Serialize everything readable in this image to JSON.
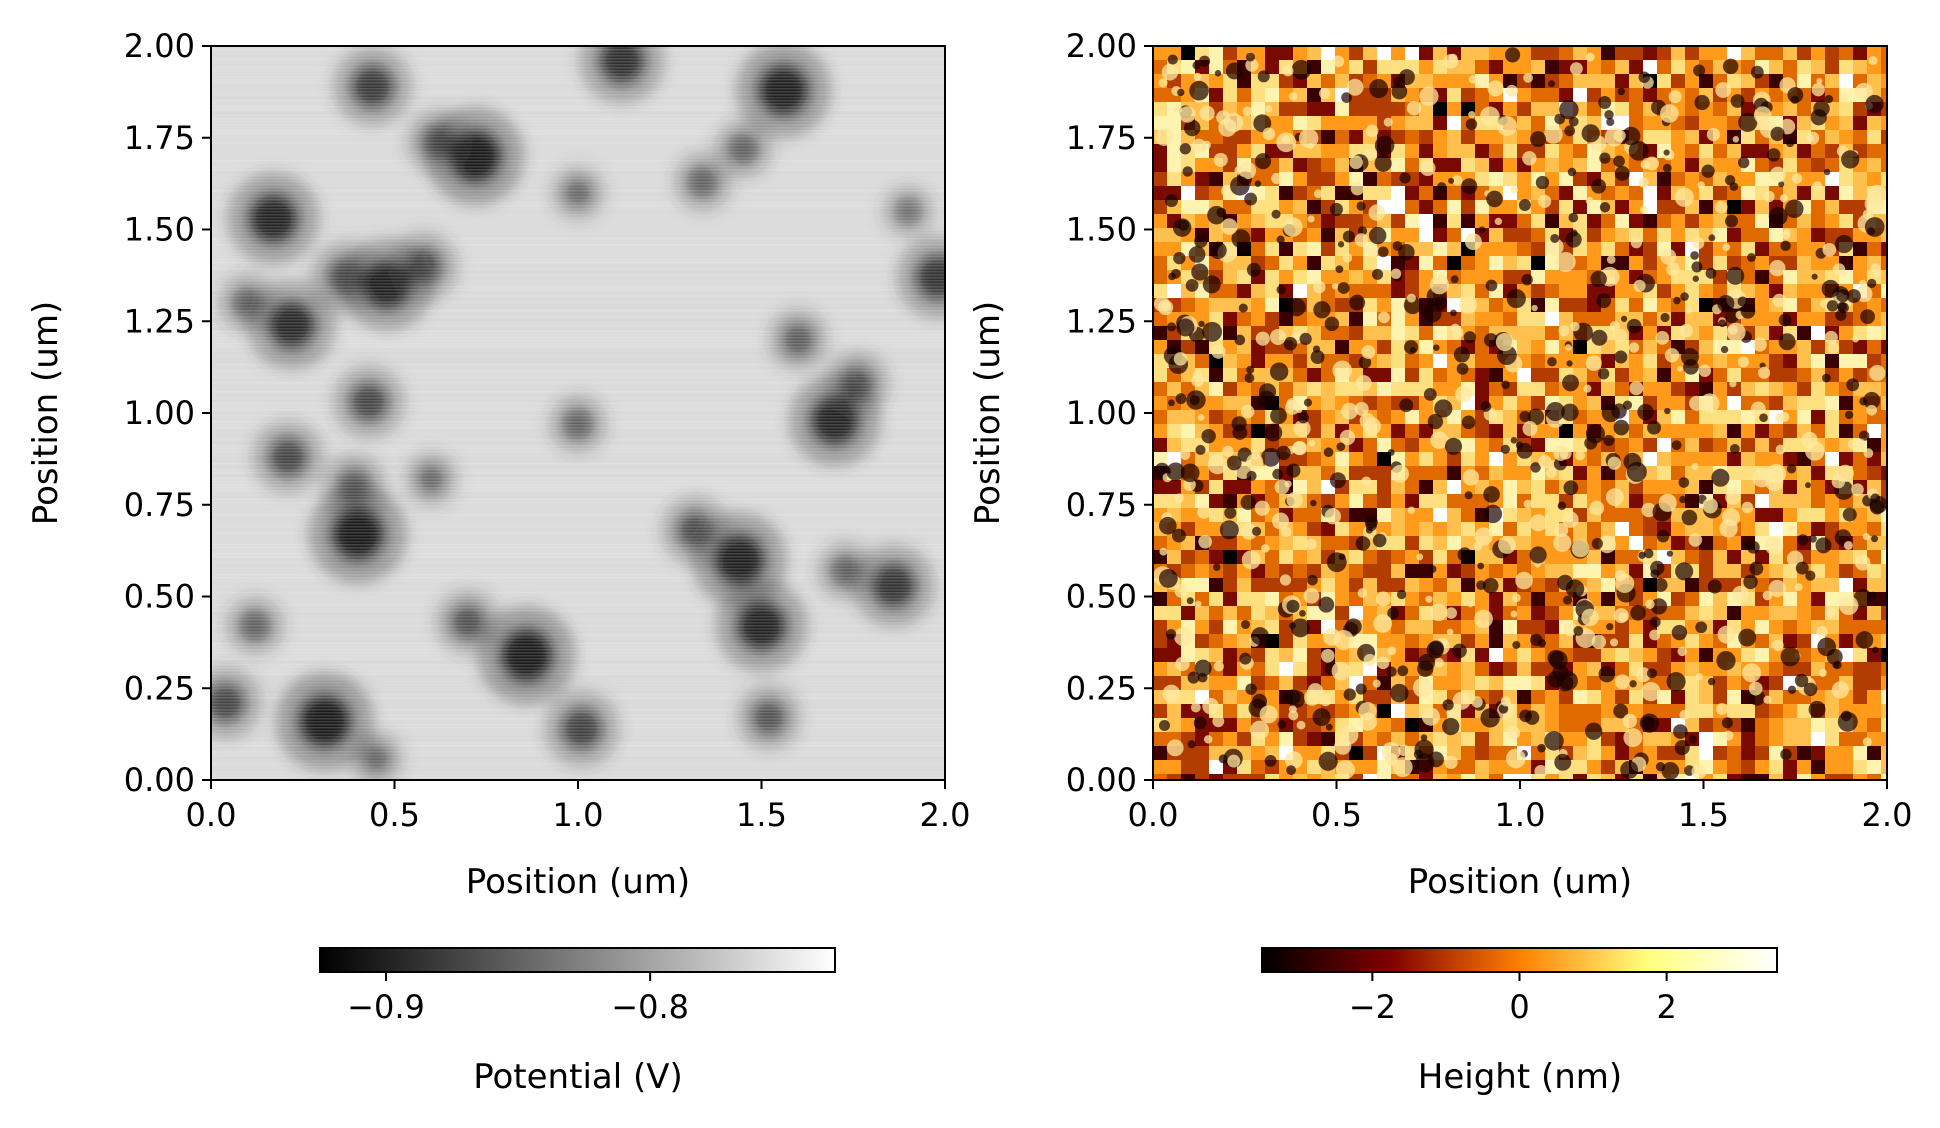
{
  "chart_data": [
    {
      "type": "heatmap",
      "title": "",
      "xlabel": "Position (um)",
      "ylabel": "Position (um)",
      "xlim": [
        0.0,
        2.0
      ],
      "ylim": [
        0.0,
        2.0
      ],
      "xticks": [
        "0.0",
        "0.5",
        "1.0",
        "1.5",
        "2.0"
      ],
      "xtick_values": [
        0.0,
        0.5,
        1.0,
        1.5,
        2.0
      ],
      "yticks": [
        "0.00",
        "0.25",
        "0.50",
        "0.75",
        "1.00",
        "1.25",
        "1.50",
        "1.75",
        "2.00"
      ],
      "ytick_values": [
        0.0,
        0.25,
        0.5,
        0.75,
        1.0,
        1.25,
        1.5,
        1.75,
        2.0
      ],
      "colormap": "gray",
      "colorbar": {
        "label": "Potential (V)",
        "range": [
          -0.925,
          -0.73
        ],
        "ticks": [
          "−0.9",
          "−0.8"
        ],
        "tick_values": [
          -0.9,
          -0.8
        ],
        "orientation": "horizontal",
        "placement": "bottom"
      },
      "features": {
        "description_values": "background near -0.76 V with dark circular spots near -0.92 V",
        "background_level": -0.765,
        "dark_spots": [
          {
            "x": 0.44,
            "y": 1.89,
            "depth": 0.7
          },
          {
            "x": 0.72,
            "y": 1.7,
            "depth": 1.0
          },
          {
            "x": 0.62,
            "y": 1.74,
            "depth": 0.5
          },
          {
            "x": 1.12,
            "y": 1.96,
            "depth": 0.8
          },
          {
            "x": 1.56,
            "y": 1.88,
            "depth": 0.95
          },
          {
            "x": 1.45,
            "y": 1.72,
            "depth": 0.4
          },
          {
            "x": 0.17,
            "y": 1.53,
            "depth": 0.9
          },
          {
            "x": 0.37,
            "y": 1.37,
            "depth": 0.6
          },
          {
            "x": 0.48,
            "y": 1.35,
            "depth": 0.9
          },
          {
            "x": 0.58,
            "y": 1.4,
            "depth": 0.55
          },
          {
            "x": 0.22,
            "y": 1.24,
            "depth": 0.85
          },
          {
            "x": 0.1,
            "y": 1.3,
            "depth": 0.4
          },
          {
            "x": 1.0,
            "y": 1.6,
            "depth": 0.35
          },
          {
            "x": 1.34,
            "y": 1.63,
            "depth": 0.4
          },
          {
            "x": 1.6,
            "y": 1.2,
            "depth": 0.45
          },
          {
            "x": 1.98,
            "y": 1.37,
            "depth": 0.75
          },
          {
            "x": 0.43,
            "y": 1.03,
            "depth": 0.6
          },
          {
            "x": 1.7,
            "y": 0.98,
            "depth": 0.9
          },
          {
            "x": 1.76,
            "y": 1.08,
            "depth": 0.5
          },
          {
            "x": 0.21,
            "y": 0.88,
            "depth": 0.6
          },
          {
            "x": 0.39,
            "y": 0.8,
            "depth": 0.5
          },
          {
            "x": 0.4,
            "y": 0.67,
            "depth": 1.0
          },
          {
            "x": 0.6,
            "y": 0.82,
            "depth": 0.35
          },
          {
            "x": 1.0,
            "y": 0.97,
            "depth": 0.4
          },
          {
            "x": 1.32,
            "y": 0.68,
            "depth": 0.55
          },
          {
            "x": 1.44,
            "y": 0.6,
            "depth": 0.95
          },
          {
            "x": 1.5,
            "y": 0.42,
            "depth": 0.9
          },
          {
            "x": 1.86,
            "y": 0.53,
            "depth": 0.75
          },
          {
            "x": 1.73,
            "y": 0.57,
            "depth": 0.4
          },
          {
            "x": 0.12,
            "y": 0.42,
            "depth": 0.4
          },
          {
            "x": 0.7,
            "y": 0.43,
            "depth": 0.5
          },
          {
            "x": 0.86,
            "y": 0.34,
            "depth": 1.0
          },
          {
            "x": 0.04,
            "y": 0.21,
            "depth": 0.6
          },
          {
            "x": 0.31,
            "y": 0.16,
            "depth": 1.0
          },
          {
            "x": 1.01,
            "y": 0.14,
            "depth": 0.65
          },
          {
            "x": 1.52,
            "y": 0.17,
            "depth": 0.5
          },
          {
            "x": 0.45,
            "y": 0.06,
            "depth": 0.35
          },
          {
            "x": 1.9,
            "y": 1.55,
            "depth": 0.3
          }
        ]
      }
    },
    {
      "type": "heatmap",
      "title": "",
      "xlabel": "Position (um)",
      "ylabel": "Position (um)",
      "xlim": [
        0.0,
        2.0
      ],
      "ylim": [
        0.0,
        2.0
      ],
      "xticks": [
        "0.0",
        "0.5",
        "1.0",
        "1.5",
        "2.0"
      ],
      "xtick_values": [
        0.0,
        0.5,
        1.0,
        1.5,
        2.0
      ],
      "yticks": [
        "0.00",
        "0.25",
        "0.50",
        "0.75",
        "1.00",
        "1.25",
        "1.50",
        "1.75",
        "2.00"
      ],
      "ytick_values": [
        0.0,
        0.25,
        0.5,
        0.75,
        1.0,
        1.25,
        1.5,
        1.75,
        2.0
      ],
      "colormap": "afmhot",
      "colorbar": {
        "label": "Height (nm)",
        "range": [
          -3.5,
          3.5
        ],
        "ticks": [
          "−2",
          "0",
          "2"
        ],
        "tick_values": [
          -2,
          0,
          2
        ],
        "orientation": "horizontal",
        "placement": "bottom"
      },
      "features": {
        "description_values": "granular surface topography, random grains between -3.5 nm and 3.5 nm"
      }
    }
  ],
  "colors": {
    "axis": "#000000",
    "background": "#ffffff"
  }
}
